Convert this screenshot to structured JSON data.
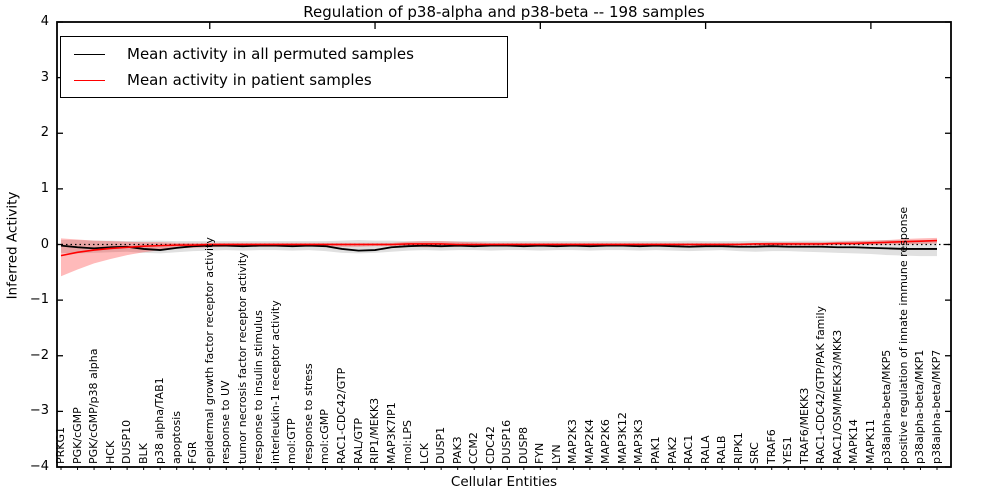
{
  "chart_data": {
    "type": "line",
    "title": "Regulation of p38-alpha and p38-beta -- 198 samples",
    "xlabel": "Cellular Entities",
    "ylabel": "Inferred Activity",
    "ylim": [
      -4,
      4
    ],
    "grid": false,
    "legend_position": "upper left",
    "ytick_labels": [
      "4",
      "3",
      "2",
      "1",
      "0",
      "−1",
      "−2",
      "−3",
      "−4"
    ],
    "ytick_values": [
      4,
      3,
      2,
      1,
      0,
      -1,
      -2,
      -3,
      -4
    ],
    "top_tick_category_indices": [
      9,
      19,
      29,
      39,
      49
    ],
    "zero_line": {
      "y": 0,
      "style": "dotted",
      "color": "#000000"
    },
    "categories": [
      "PRKG1",
      "PGK/cGMP",
      "PGK/cGMP/p38 alpha",
      "HCK",
      "DUSP10",
      "BLK",
      "p38 alpha/TAB1",
      "apoptosis",
      "FGR",
      "epidermal growth factor receptor activity",
      "response to UV",
      "tumor necrosis factor receptor activity",
      "response to insulin stimulus",
      "interleukin-1 receptor activity",
      "mol:GTP",
      "response to stress",
      "mol:cGMP",
      "RAC1-CDC42/GTP",
      "RAL/GTP",
      "RIP1/MEKK3",
      "MAP3K7IP1",
      "mol:LPS",
      "LCK",
      "DUSP1",
      "PAK3",
      "CCM2",
      "CDC42",
      "DUSP16",
      "DUSP8",
      "FYN",
      "LYN",
      "MAP2K3",
      "MAP2K4",
      "MAP2K6",
      "MAP3K12",
      "MAP3K3",
      "PAK1",
      "PAK2",
      "RAC1",
      "RALA",
      "RALB",
      "RIPK1",
      "SRC",
      "TRAF6",
      "YES1",
      "TRAF6/MEKK3",
      "RAC1-CDC42/GTP/PAK family",
      "RAC1/OSM/MEKK3/MKK3",
      "MAPK14",
      "MAPK11",
      "p38alpha-beta/MKP5",
      "positive regulation of innate immune response",
      "p38alpha-beta/MKP1",
      "p38alpha-beta/MKP7"
    ],
    "series": [
      {
        "name": "Mean activity in all permuted samples",
        "color": "#000000",
        "line_width": 1.8,
        "values": [
          -0.02,
          -0.05,
          -0.07,
          -0.05,
          -0.04,
          -0.08,
          -0.1,
          -0.06,
          -0.03,
          -0.02,
          -0.02,
          -0.03,
          -0.02,
          -0.02,
          -0.03,
          -0.02,
          -0.03,
          -0.08,
          -0.11,
          -0.1,
          -0.05,
          -0.03,
          -0.02,
          -0.03,
          -0.02,
          -0.03,
          -0.02,
          -0.02,
          -0.03,
          -0.02,
          -0.03,
          -0.02,
          -0.03,
          -0.02,
          -0.02,
          -0.03,
          -0.02,
          -0.03,
          -0.04,
          -0.03,
          -0.03,
          -0.04,
          -0.04,
          -0.03,
          -0.04,
          -0.04,
          -0.04,
          -0.05,
          -0.05,
          -0.06,
          -0.07,
          -0.08,
          -0.08,
          -0.08
        ],
        "band": {
          "fill": "#000000",
          "opacity": 0.12,
          "lower": [
            -0.15,
            -0.16,
            -0.15,
            -0.14,
            -0.13,
            -0.15,
            -0.16,
            -0.14,
            -0.12,
            -0.11,
            -0.1,
            -0.11,
            -0.1,
            -0.1,
            -0.11,
            -0.1,
            -0.12,
            -0.15,
            -0.16,
            -0.15,
            -0.13,
            -0.11,
            -0.1,
            -0.11,
            -0.1,
            -0.1,
            -0.11,
            -0.1,
            -0.1,
            -0.11,
            -0.1,
            -0.1,
            -0.11,
            -0.1,
            -0.1,
            -0.11,
            -0.1,
            -0.11,
            -0.12,
            -0.11,
            -0.1,
            -0.12,
            -0.13,
            -0.12,
            -0.12,
            -0.13,
            -0.14,
            -0.15,
            -0.16,
            -0.17,
            -0.19,
            -0.2,
            -0.21,
            -0.21
          ],
          "upper": [
            0.08,
            0.08,
            0.07,
            0.07,
            0.06,
            0.07,
            0.07,
            0.06,
            0.06,
            0.06,
            0.06,
            0.06,
            0.06,
            0.06,
            0.06,
            0.06,
            0.06,
            0.07,
            0.08,
            0.07,
            0.07,
            0.06,
            0.06,
            0.06,
            0.06,
            0.06,
            0.06,
            0.06,
            0.06,
            0.06,
            0.06,
            0.06,
            0.06,
            0.06,
            0.06,
            0.06,
            0.06,
            0.06,
            0.07,
            0.06,
            0.06,
            0.06,
            0.07,
            0.06,
            0.06,
            0.07,
            0.07,
            0.07,
            0.07,
            0.07,
            0.08,
            0.08,
            0.08,
            0.08
          ]
        }
      },
      {
        "name": "Mean activity in patient samples",
        "color": "#ff0000",
        "line_width": 1.6,
        "values": [
          -0.2,
          -0.14,
          -0.1,
          -0.07,
          -0.05,
          -0.03,
          -0.02,
          -0.01,
          -0.01,
          0.0,
          0.0,
          0.0,
          0.0,
          0.0,
          0.0,
          0.0,
          0.0,
          0.0,
          0.0,
          0.0,
          0.0,
          0.01,
          0.01,
          0.01,
          0.0,
          0.0,
          0.0,
          0.0,
          0.0,
          0.0,
          0.0,
          0.0,
          0.0,
          0.0,
          0.0,
          0.0,
          0.0,
          0.0,
          0.0,
          0.0,
          0.0,
          0.0,
          0.01,
          0.01,
          0.01,
          0.01,
          0.01,
          0.02,
          0.02,
          0.03,
          0.04,
          0.05,
          0.06,
          0.07
        ],
        "band": {
          "fill": "#ff0000",
          "opacity": 0.27,
          "lower": [
            -0.57,
            -0.45,
            -0.34,
            -0.26,
            -0.19,
            -0.14,
            -0.1,
            -0.07,
            -0.06,
            -0.05,
            -0.04,
            -0.04,
            -0.04,
            -0.04,
            -0.04,
            -0.03,
            -0.03,
            -0.04,
            -0.04,
            -0.03,
            -0.03,
            -0.04,
            -0.05,
            -0.05,
            -0.04,
            -0.03,
            -0.03,
            -0.03,
            -0.03,
            -0.03,
            -0.02,
            -0.02,
            -0.02,
            -0.02,
            -0.02,
            -0.02,
            -0.02,
            -0.02,
            -0.02,
            -0.02,
            -0.02,
            -0.02,
            -0.02,
            -0.02,
            -0.02,
            -0.02,
            -0.02,
            -0.01,
            -0.01,
            -0.01,
            0.0,
            0.0,
            0.01,
            0.02
          ],
          "upper": [
            0.11,
            0.09,
            0.07,
            0.06,
            0.05,
            0.04,
            0.04,
            0.03,
            0.03,
            0.03,
            0.03,
            0.03,
            0.03,
            0.03,
            0.03,
            0.03,
            0.03,
            0.03,
            0.03,
            0.03,
            0.03,
            0.05,
            0.06,
            0.06,
            0.05,
            0.04,
            0.03,
            0.03,
            0.03,
            0.03,
            0.03,
            0.03,
            0.03,
            0.03,
            0.03,
            0.03,
            0.03,
            0.03,
            0.03,
            0.03,
            0.03,
            0.03,
            0.03,
            0.04,
            0.04,
            0.04,
            0.04,
            0.05,
            0.06,
            0.07,
            0.08,
            0.1,
            0.11,
            0.12
          ]
        }
      }
    ]
  },
  "colors": {
    "background": "#ffffff",
    "axis": "#000000"
  }
}
